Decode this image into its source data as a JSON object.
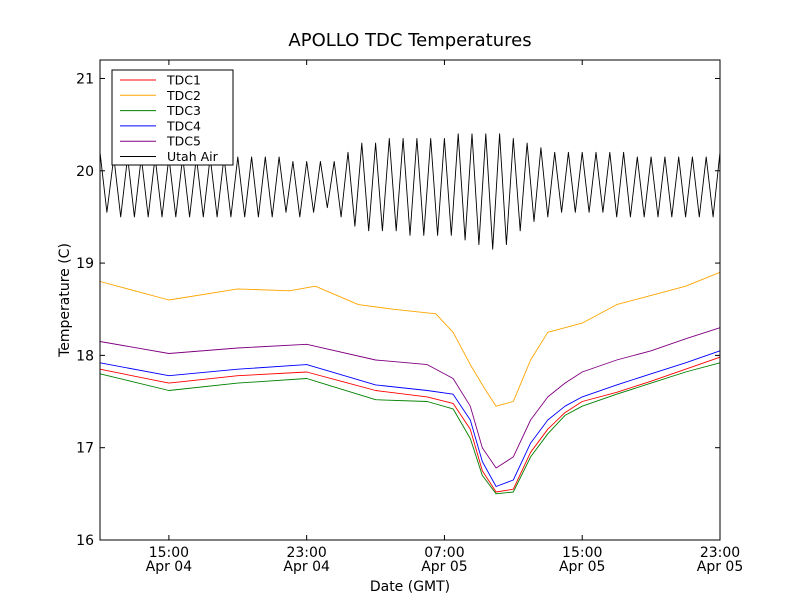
{
  "chart_data": {
    "type": "line",
    "title": "APOLLO TDC Temperatures",
    "xlabel": "Date (GMT)",
    "ylabel": "Temperature (C)",
    "x_unit": "hours since Apr 04 11:00 GMT",
    "xlim": [
      0,
      36
    ],
    "ylim": [
      16,
      21.2
    ],
    "yticks": [
      16,
      17,
      18,
      19,
      20,
      21
    ],
    "xticks": [
      {
        "x": 4,
        "time": "15:00",
        "date": "Apr 04"
      },
      {
        "x": 12,
        "time": "23:00",
        "date": "Apr 04"
      },
      {
        "x": 20,
        "time": "07:00",
        "date": "Apr 05"
      },
      {
        "x": 28,
        "time": "15:00",
        "date": "Apr 05"
      },
      {
        "x": 36,
        "time": "23:00",
        "date": "Apr 05"
      }
    ],
    "grid": false,
    "legend_position": "top-left",
    "series": [
      {
        "name": "TDC1",
        "color": "#ff0000",
        "x": [
          0,
          4,
          8,
          12,
          16,
          19,
          20.5,
          21.5,
          22.2,
          23,
          24,
          25,
          26,
          27,
          28,
          30,
          32,
          34,
          36
        ],
        "y": [
          17.85,
          17.7,
          17.78,
          17.82,
          17.62,
          17.55,
          17.48,
          17.2,
          16.75,
          16.52,
          16.55,
          16.95,
          17.2,
          17.38,
          17.5,
          17.6,
          17.72,
          17.85,
          17.98
        ]
      },
      {
        "name": "TDC2",
        "color": "#ffa500",
        "x": [
          0,
          4,
          8,
          11,
          12.5,
          15,
          17,
          19.5,
          20.5,
          21.5,
          22.3,
          23,
          24,
          25,
          26,
          28,
          30,
          32,
          34,
          36
        ],
        "y": [
          18.8,
          18.6,
          18.72,
          18.7,
          18.75,
          18.55,
          18.5,
          18.45,
          18.25,
          17.9,
          17.65,
          17.45,
          17.5,
          17.95,
          18.25,
          18.35,
          18.55,
          18.65,
          18.75,
          18.9
        ]
      },
      {
        "name": "TDC3",
        "color": "#008000",
        "x": [
          0,
          4,
          8,
          12,
          16,
          19,
          20.5,
          21.5,
          22.2,
          23,
          24,
          25,
          26,
          27,
          28,
          30,
          32,
          34,
          36
        ],
        "y": [
          17.8,
          17.62,
          17.7,
          17.75,
          17.52,
          17.5,
          17.42,
          17.1,
          16.7,
          16.5,
          16.52,
          16.9,
          17.15,
          17.35,
          17.45,
          17.58,
          17.7,
          17.82,
          17.92
        ]
      },
      {
        "name": "TDC4",
        "color": "#0000ff",
        "x": [
          0,
          4,
          8,
          12,
          16,
          19,
          20.5,
          21.5,
          22.2,
          23,
          24,
          25,
          26,
          27,
          28,
          30,
          32,
          34,
          36
        ],
        "y": [
          17.92,
          17.78,
          17.85,
          17.9,
          17.68,
          17.62,
          17.58,
          17.3,
          16.85,
          16.58,
          16.65,
          17.05,
          17.3,
          17.45,
          17.55,
          17.68,
          17.8,
          17.92,
          18.05
        ]
      },
      {
        "name": "TDC5",
        "color": "#800080",
        "x": [
          0,
          4,
          8,
          12,
          16,
          19,
          20.5,
          21.5,
          22.2,
          23,
          24,
          25,
          26,
          27,
          28,
          30,
          32,
          34,
          36
        ],
        "y": [
          18.15,
          18.02,
          18.08,
          18.12,
          17.95,
          17.9,
          17.75,
          17.45,
          17.0,
          16.78,
          16.9,
          17.3,
          17.55,
          17.7,
          17.82,
          17.95,
          18.05,
          18.18,
          18.3
        ]
      },
      {
        "name": "Utah Air",
        "color": "#000000",
        "x": [
          0,
          0.4,
          0.8,
          1.2,
          1.6,
          2.0,
          2.4,
          2.8,
          3.2,
          3.6,
          4.0,
          4.4,
          4.8,
          5.2,
          5.6,
          6.0,
          6.4,
          6.8,
          7.2,
          7.6,
          8.0,
          8.4,
          8.8,
          9.2,
          9.6,
          10.0,
          10.4,
          10.8,
          11.2,
          11.6,
          12.0,
          12.4,
          12.8,
          13.2,
          13.6,
          14.0,
          14.4,
          14.8,
          15.2,
          15.6,
          16.0,
          16.4,
          16.8,
          17.2,
          17.6,
          18.0,
          18.4,
          18.8,
          19.2,
          19.6,
          20.0,
          20.4,
          20.8,
          21.2,
          21.6,
          22.0,
          22.4,
          22.8,
          23.2,
          23.6,
          24.0,
          24.4,
          24.8,
          25.2,
          25.6,
          26.0,
          26.4,
          26.8,
          27.2,
          27.6,
          28.0,
          28.4,
          28.8,
          29.2,
          29.6,
          30.0,
          30.4,
          30.8,
          31.2,
          31.6,
          32.0,
          32.4,
          32.8,
          33.2,
          33.6,
          34.0,
          34.4,
          34.8,
          35.2,
          35.6,
          36.0
        ],
        "y": [
          20.2,
          19.55,
          20.15,
          19.5,
          20.15,
          19.5,
          20.15,
          19.5,
          20.15,
          19.5,
          20.15,
          19.5,
          20.15,
          19.5,
          20.15,
          19.5,
          20.15,
          19.5,
          20.15,
          19.5,
          20.15,
          19.5,
          20.15,
          19.5,
          20.15,
          19.5,
          20.15,
          19.55,
          20.1,
          19.5,
          20.1,
          19.55,
          20.1,
          19.6,
          20.1,
          19.5,
          20.2,
          19.4,
          20.3,
          19.35,
          20.3,
          19.35,
          20.35,
          19.35,
          20.35,
          19.3,
          20.35,
          19.3,
          20.35,
          19.3,
          20.35,
          19.3,
          20.4,
          19.25,
          20.4,
          19.2,
          20.4,
          19.15,
          20.4,
          19.2,
          20.35,
          19.35,
          20.3,
          19.45,
          20.25,
          19.5,
          20.2,
          19.55,
          20.2,
          19.55,
          20.2,
          19.55,
          20.2,
          19.55,
          20.2,
          19.5,
          20.2,
          19.5,
          20.15,
          19.5,
          20.15,
          19.5,
          20.15,
          19.5,
          20.15,
          19.5,
          20.15,
          19.5,
          20.15,
          19.5,
          20.2
        ]
      }
    ]
  }
}
